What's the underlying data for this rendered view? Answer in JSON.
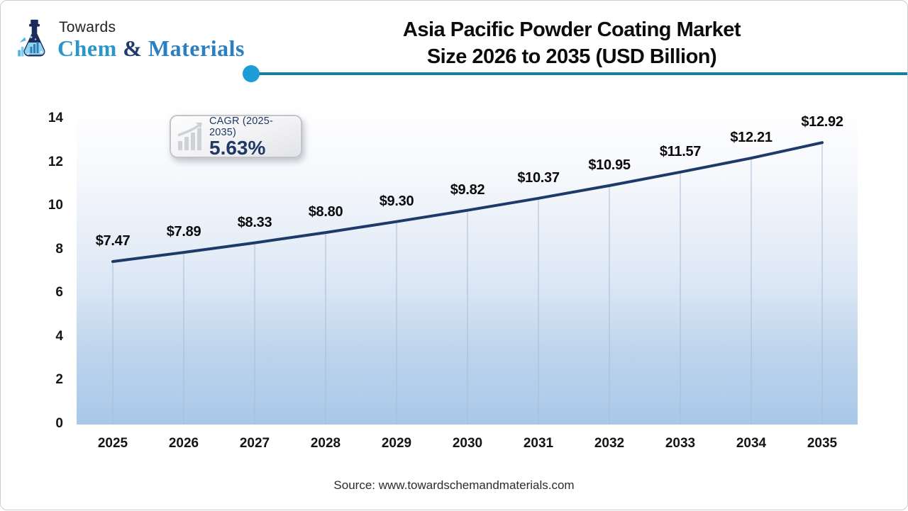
{
  "header": {
    "logo": {
      "word_top": "Towards",
      "brand_chem": "Chem",
      "brand_amp": " & ",
      "brand_materials": "Materials"
    },
    "title_line1": "Asia Pacific Powder Coating Market",
    "title_line2": "Size 2026 to 2035 (USD Billion)"
  },
  "badge": {
    "label": "CAGR (2025-2035)",
    "value": "5.63%"
  },
  "chart_data": {
    "type": "area",
    "title": "Asia Pacific Powder Coating Market Size 2026 to 2035 (USD Billion)",
    "unit": "USD Billion",
    "categories": [
      "2025",
      "2026",
      "2027",
      "2028",
      "2029",
      "2030",
      "2031",
      "2032",
      "2033",
      "2034",
      "2035"
    ],
    "values": [
      7.47,
      7.89,
      8.33,
      8.8,
      9.3,
      9.82,
      10.37,
      10.95,
      11.57,
      12.21,
      12.92
    ],
    "point_labels": [
      "$7.47",
      "$7.89",
      "$8.33",
      "$8.80",
      "$9.30",
      "$9.82",
      "$10.37",
      "$10.95",
      "$11.57",
      "$12.21",
      "$12.92"
    ],
    "ylim": [
      0,
      14
    ],
    "yticks": [
      0,
      2,
      4,
      6,
      8,
      10,
      12,
      14
    ],
    "grid": false,
    "legend": "none",
    "line_color": "#1d3a68",
    "droplines_color": "#a9bcd4",
    "plot_gradient_top": "#ffffff",
    "plot_gradient_bottom": "#a8c8e9"
  },
  "footer": {
    "source": "Source: www.towardschemandmaterials.com"
  },
  "colors": {
    "accent_rule": "#157f9f",
    "accent_dot": "#1e9cd6",
    "badge_text": "#1f3864",
    "brand_chem": "#2b97c9",
    "brand_amp": "#21386e",
    "brand_materials": "#2b7fc0"
  }
}
